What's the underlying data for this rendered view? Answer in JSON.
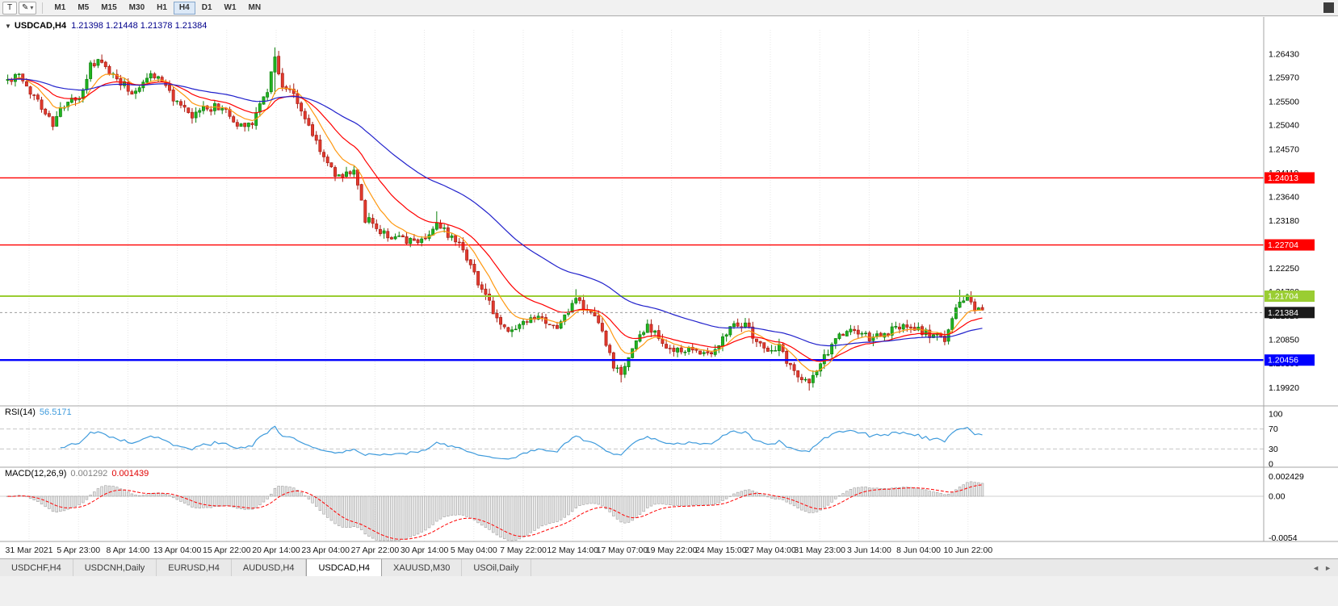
{
  "icons": {
    "collapse": "▼",
    "dropdown": "▾",
    "pencil": "✎",
    "tab_scroll_left": "◄",
    "tab_scroll_right": "►"
  },
  "toolbar": {
    "t_button": "T",
    "timeframes": [
      "M1",
      "M5",
      "M15",
      "M30",
      "H1",
      "H4",
      "D1",
      "W1",
      "MN"
    ],
    "active_timeframe": "H4"
  },
  "chart": {
    "title_symbol": "USDCAD,H4",
    "title_quotes": "1.21398 1.21448 1.21378 1.21384"
  },
  "rsi_panel": {
    "label": "RSI(14)",
    "value": "56.5171",
    "axis_labels": [
      "100",
      "70",
      "30",
      "0"
    ],
    "axis_values": [
      100,
      70,
      30,
      0
    ],
    "level_lines": [
      70,
      30
    ],
    "line_color": "#3f9bdc"
  },
  "macd_panel": {
    "label": "MACD(12,26,9)",
    "value_main": "0.001292",
    "value_signal": "0.001439",
    "axis_labels": [
      "0.002429",
      "0.00",
      "-0.0054"
    ],
    "axis_values": [
      0.002429,
      0.0,
      -0.0054
    ],
    "histogram_fill": "#e6e6e6",
    "histogram_border": "#9f9f9f",
    "signal_color": "#ff0000"
  },
  "tabs": [
    {
      "label": "USDCHF,H4",
      "active": false
    },
    {
      "label": "USDCNH,Daily",
      "active": false
    },
    {
      "label": "EURUSD,H4",
      "active": false
    },
    {
      "label": "AUDUSD,H4",
      "active": false
    },
    {
      "label": "USDCAD,H4",
      "active": true
    },
    {
      "label": "XAUUSD,M30",
      "active": false
    },
    {
      "label": "USOil,Daily",
      "active": false
    }
  ],
  "colors": {
    "candle_up": "#21b421",
    "candle_up_border": "#0c800c",
    "candle_down": "#e23a2e",
    "candle_down_border": "#a81d14",
    "ma_fast": "#ff9912",
    "ma_medium": "#ff0000",
    "ma_slow": "#2222cc",
    "grid": "#e7e7e7",
    "panel_border": "#a5a5a5",
    "current_price_box": "#1a1a1a"
  },
  "chart_data": {
    "type": "candlestick",
    "symbol": "USDCAD",
    "timeframe": "H4",
    "ohlc_current": [
      1.21398,
      1.21448,
      1.21378,
      1.21384
    ],
    "candle_count": 260,
    "ylim": [
      1.1965,
      1.269
    ],
    "price_axis_labels": [
      "1.26430",
      "1.25970",
      "1.25500",
      "1.25040",
      "1.24570",
      "1.24110",
      "1.23640",
      "1.23180",
      "1.22710",
      "1.22250",
      "1.21790",
      "1.21320",
      "1.20850",
      "1.20390",
      "1.19920"
    ],
    "time_labels": [
      "31 Mar 2021",
      "5 Apr 23:00",
      "8 Apr 14:00",
      "13 Apr 04:00",
      "15 Apr 22:00",
      "20 Apr 14:00",
      "23 Apr 04:00",
      "27 Apr 22:00",
      "30 Apr 14:00",
      "5 May 04:00",
      "7 May 22:00",
      "12 May 14:00",
      "17 May 07:00",
      "19 May 22:00",
      "24 May 15:00",
      "27 May 04:00",
      "31 May 23:00",
      "3 Jun 14:00",
      "8 Jun 04:00",
      "10 Jun 22:00"
    ],
    "hlines": [
      {
        "label": "1.24013",
        "price": 1.24013,
        "color": "#ff0000",
        "width": 1.4
      },
      {
        "label": "1.22704",
        "price": 1.22704,
        "color": "#ff0000",
        "width": 1.4
      },
      {
        "label": "1.21704",
        "price": 1.21704,
        "color": "#9acd32",
        "width": 2
      },
      {
        "label": "1.20456",
        "price": 1.20456,
        "color": "#0000ff",
        "width": 2.4
      }
    ],
    "current_price": {
      "label": "1.21384",
      "price": 1.21384
    },
    "moving_averages": [
      {
        "name": "fast",
        "period": 9,
        "color": "#ff9912"
      },
      {
        "name": "medium",
        "period": 21,
        "color": "#ff0000"
      },
      {
        "name": "slow",
        "period": 55,
        "color": "#2222cc"
      }
    ],
    "rsi_period": 14,
    "macd_params": [
      12,
      26,
      9
    ],
    "price_path_anchors": [
      [
        0,
        1.2592
      ],
      [
        3,
        1.26
      ],
      [
        5,
        1.2575
      ],
      [
        8,
        1.2555
      ],
      [
        12,
        1.2505
      ],
      [
        15,
        1.2545
      ],
      [
        19,
        1.2555
      ],
      [
        22,
        1.2618
      ],
      [
        24,
        1.2628
      ],
      [
        26,
        1.2615
      ],
      [
        30,
        1.259
      ],
      [
        33,
        1.2568
      ],
      [
        36,
        1.259
      ],
      [
        38,
        1.2605
      ],
      [
        41,
        1.2592
      ],
      [
        45,
        1.2545
      ],
      [
        49,
        1.2518
      ],
      [
        52,
        1.2538
      ],
      [
        57,
        1.254
      ],
      [
        61,
        1.2502
      ],
      [
        65,
        1.2512
      ],
      [
        69,
        1.2575
      ],
      [
        71,
        1.264
      ],
      [
        73,
        1.2578
      ],
      [
        76,
        1.2565
      ],
      [
        80,
        1.2502
      ],
      [
        85,
        1.2428
      ],
      [
        88,
        1.2402
      ],
      [
        92,
        1.242
      ],
      [
        95,
        1.2322
      ],
      [
        100,
        1.2292
      ],
      [
        106,
        1.2276
      ],
      [
        110,
        1.2282
      ],
      [
        114,
        1.2308
      ],
      [
        117,
        1.2292
      ],
      [
        120,
        1.228
      ],
      [
        123,
        1.2232
      ],
      [
        127,
        1.2168
      ],
      [
        130,
        1.2128
      ],
      [
        133,
        1.2098
      ],
      [
        136,
        1.2112
      ],
      [
        141,
        1.2126
      ],
      [
        145,
        1.2106
      ],
      [
        149,
        1.2138
      ],
      [
        151,
        1.2172
      ],
      [
        152,
        1.2155
      ],
      [
        157,
        1.2116
      ],
      [
        161,
        1.2032
      ],
      [
        163,
        1.2016
      ],
      [
        166,
        1.207
      ],
      [
        170,
        1.2114
      ],
      [
        173,
        1.2086
      ],
      [
        177,
        1.2062
      ],
      [
        183,
        1.2066
      ],
      [
        187,
        1.206
      ],
      [
        191,
        1.21
      ],
      [
        193,
        1.2124
      ],
      [
        197,
        1.2106
      ],
      [
        201,
        1.2066
      ],
      [
        205,
        1.207
      ],
      [
        209,
        1.2022
      ],
      [
        213,
        1.2002
      ],
      [
        216,
        1.2036
      ],
      [
        220,
        1.209
      ],
      [
        225,
        1.2104
      ],
      [
        229,
        1.2086
      ],
      [
        233,
        1.2096
      ],
      [
        237,
        1.211
      ],
      [
        242,
        1.2104
      ],
      [
        246,
        1.2094
      ],
      [
        249,
        1.2086
      ],
      [
        252,
        1.2148
      ],
      [
        255,
        1.2172
      ],
      [
        257,
        1.2146
      ],
      [
        259,
        1.2138
      ]
    ],
    "spikes": [
      {
        "i": 71,
        "hi": 1.2656,
        "lo": 1.2565
      },
      {
        "i": 114,
        "hi": 1.2336
      },
      {
        "i": 151,
        "hi": 1.2184
      },
      {
        "i": 163,
        "lo": 1.2002
      },
      {
        "i": 213,
        "lo": 1.1986
      },
      {
        "i": 253,
        "hi": 1.2183
      }
    ]
  }
}
